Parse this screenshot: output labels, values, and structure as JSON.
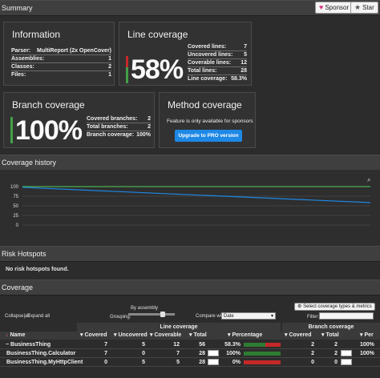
{
  "summary": {
    "title": "Summary",
    "sponsor_label": "Sponsor",
    "star_label": "Star"
  },
  "information": {
    "title": "Information",
    "rows": [
      {
        "label": "Parser:",
        "value": "MultiReport (2x OpenCover)"
      },
      {
        "label": "Assemblies:",
        "value": "1"
      },
      {
        "label": "Classes:",
        "value": "2"
      },
      {
        "label": "Files:",
        "value": "1"
      }
    ]
  },
  "line_coverage": {
    "title": "Line coverage",
    "percent": "58%",
    "covered_fraction": 0.583,
    "rows": [
      {
        "label": "Covered lines:",
        "value": "7"
      },
      {
        "label": "Uncovered lines:",
        "value": "5"
      },
      {
        "label": "Coverable lines:",
        "value": "12"
      },
      {
        "label": "Total lines:",
        "value": "28"
      },
      {
        "label": "Line coverage:",
        "value": "58.3%"
      }
    ]
  },
  "branch_coverage": {
    "title": "Branch coverage",
    "percent": "100%",
    "covered_fraction": 1.0,
    "rows": [
      {
        "label": "Covered branches:",
        "value": "2"
      },
      {
        "label": "Total branches:",
        "value": "2"
      },
      {
        "label": "Branch coverage:",
        "value": "100%"
      }
    ]
  },
  "method_coverage": {
    "title": "Method coverage",
    "message": "Feature is only available for sponsors",
    "upgrade_label": "Upgrade to PRO version"
  },
  "history": {
    "title": "Coverage history",
    "zoom_icon": "magnifier-icon"
  },
  "chart_data": {
    "type": "line",
    "x": [
      1,
      2
    ],
    "series": [
      {
        "values": [
          100,
          100
        ],
        "color": "#4caf50"
      },
      {
        "values": [
          98,
          58.3
        ],
        "color": "#1e88e5"
      }
    ],
    "ytick_labels": [
      "100",
      "75",
      "50",
      "25",
      "0"
    ],
    "ylim": [
      0,
      100
    ],
    "grid": true
  },
  "hotspots": {
    "title": "Risk Hotspots",
    "message": "No risk hotspots found."
  },
  "coverage": {
    "title": "Coverage",
    "collapse_all": "Collapse all",
    "separator": "|",
    "expand_all": "Expand all",
    "grouping_label": "Grouping:",
    "grouping_value": "By assembly",
    "compare_label": "Compare with:",
    "compare_value": "Date",
    "metrics_button": "Select coverage types & metrics",
    "filter_label": "Filter:",
    "filter_value": "",
    "line_group": "Line coverage",
    "branch_group": "Branch coverage",
    "columns": [
      "Name",
      "Covered",
      "Uncovered",
      "Coverable",
      "Total",
      "Percentage",
      "Covered",
      "Total",
      "Per"
    ],
    "rows": [
      {
        "name": "BusinessThing",
        "covered": "7",
        "uncovered": "5",
        "coverable": "12",
        "total": "56",
        "percent": "58.3%",
        "fraction": 0.583,
        "b_covered": "2",
        "b_total": "2",
        "b_percent": "100%",
        "expanded": true
      },
      {
        "name": "BusinessThing.Calculator",
        "covered": "7",
        "uncovered": "0",
        "coverable": "7",
        "total": "28",
        "percent": "100%",
        "fraction": 1.0,
        "b_covered": "2",
        "b_total": "2",
        "b_percent": "100%"
      },
      {
        "name": "BusinessThing.MyHttpClient",
        "covered": "0",
        "uncovered": "5",
        "coverable": "5",
        "total": "28",
        "percent": "0%",
        "fraction": 0.0,
        "b_covered": "0",
        "b_total": "0",
        "b_percent": ""
      }
    ]
  }
}
